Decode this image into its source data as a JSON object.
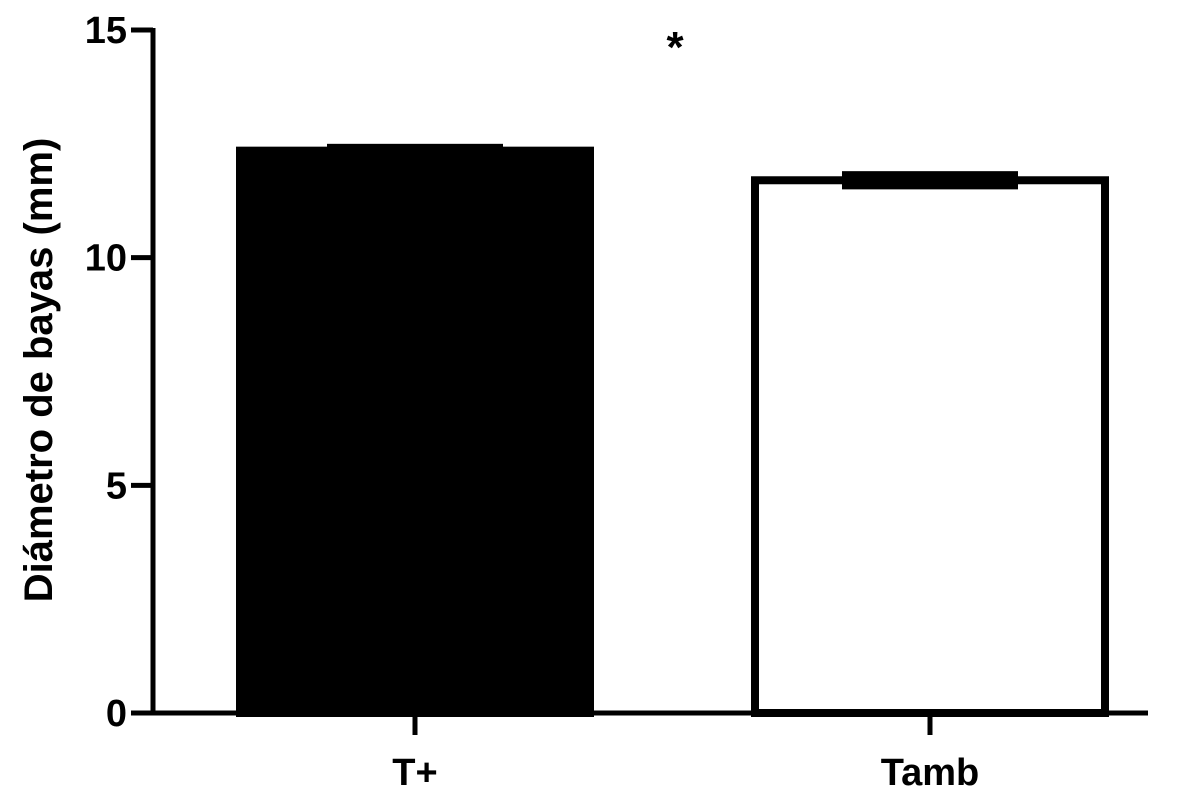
{
  "chart_data": {
    "type": "bar",
    "title": "",
    "xlabel": "",
    "ylabel": "Diámetro de bayas (mm)",
    "ylim": [
      0,
      15
    ],
    "yticks": [
      0,
      5,
      10,
      15
    ],
    "categories": [
      "T+",
      "Tamb"
    ],
    "values": [
      12.35,
      11.7
    ],
    "errors": [
      0.15,
      0.2
    ],
    "bar_fill": [
      "#000000",
      "#ffffff"
    ],
    "bar_stroke": "#000000",
    "annotation": "*",
    "grid": false,
    "legend": "none"
  }
}
